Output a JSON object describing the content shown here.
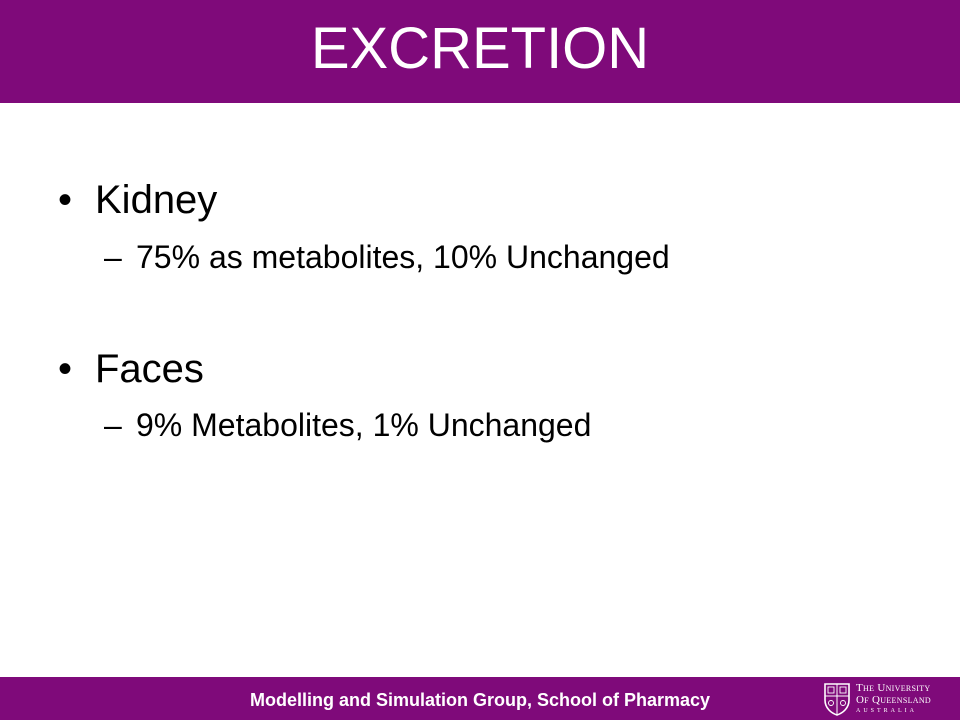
{
  "slide": {
    "title": "EXCRETION",
    "bullet_symbol": "•",
    "sub_symbol": "–",
    "items": [
      {
        "label": "Kidney",
        "sub": "75% as metabolites, 10% Unchanged"
      },
      {
        "label": "Faces",
        "sub": "9% Metabolites, 1% Unchanged"
      }
    ]
  },
  "footer": {
    "text": "Modelling and Simulation Group, School of Pharmacy",
    "logo_line1": "The University",
    "logo_line2": "Of Queensland",
    "logo_line3": "AUSTRALIA"
  },
  "colors": {
    "brand_purple": "#7f0a7a",
    "text": "#000000",
    "background": "#ffffff"
  }
}
